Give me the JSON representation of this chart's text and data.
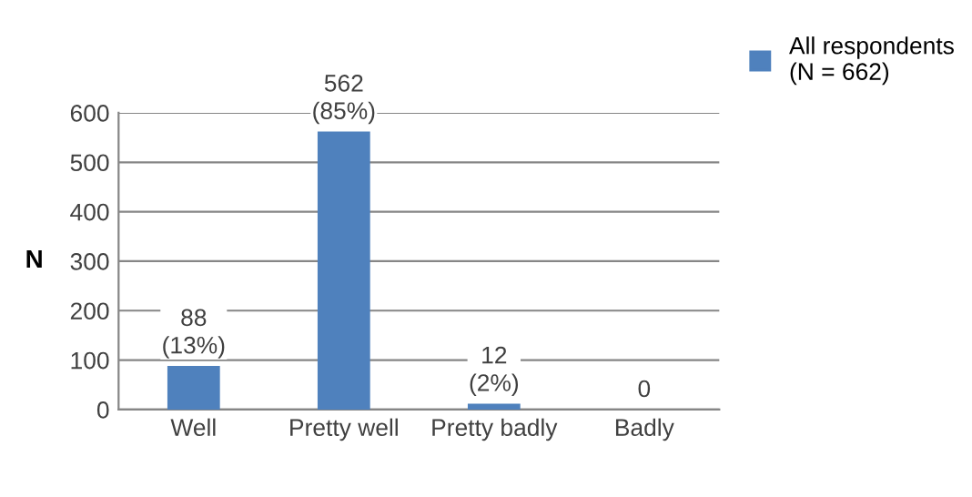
{
  "chart_data": {
    "type": "bar",
    "ylabel": "N",
    "categories": [
      "Well",
      "Pretty well",
      "Pretty badly",
      "Badly"
    ],
    "series": [
      {
        "name": "All respondents\n(N = 662)",
        "color": "#4f81bd",
        "values": [
          88,
          562,
          12,
          0
        ],
        "value_labels": [
          "88\n(13%)",
          "562\n(85%)",
          "12\n(2%)",
          "0"
        ]
      }
    ],
    "ylim": [
      0,
      600
    ],
    "yticks": [
      0,
      100,
      200,
      300,
      400,
      500,
      600
    ],
    "grid": "y",
    "legend": "top right"
  }
}
